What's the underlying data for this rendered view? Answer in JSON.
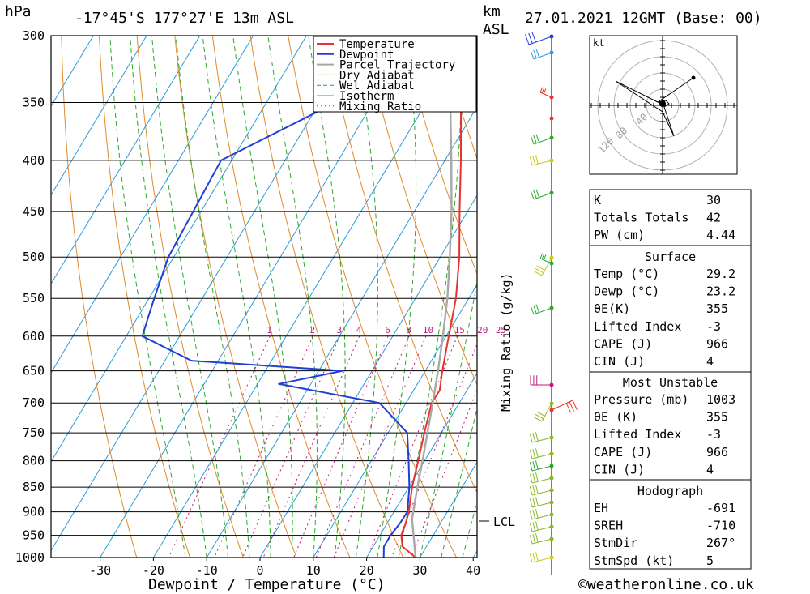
{
  "header": {
    "location": "-17°45'S 177°27'E 13m ASL",
    "datetime": "27.01.2021 12GMT (Base: 00)",
    "hpa_unit": "hPa",
    "km_unit": "km",
    "asl_unit": "ASL",
    "hodograph_unit": "kt"
  },
  "chart_data": {
    "type": "line",
    "xlabel": "Dewpoint / Temperature (°C)",
    "ylabel": "hPa",
    "mixing_ratio_axis_label": "Mixing Ratio (g/kg)",
    "x_ticks": [
      "-30",
      "-20",
      "-10",
      "0",
      "10",
      "20",
      "30",
      "40"
    ],
    "pressure_levels": [
      "300",
      "350",
      "400",
      "450",
      "500",
      "550",
      "600",
      "650",
      "700",
      "750",
      "800",
      "850",
      "900",
      "950",
      "1000"
    ],
    "mixing_ratio_labels": [
      "1",
      "2",
      "3",
      "4",
      "6",
      "8",
      "10",
      "15",
      "20",
      "25"
    ],
    "lcl_label": "LCL",
    "lcl_pressure_hpa": 915,
    "legend": [
      "Temperature",
      "Dewpoint",
      "Parcel Trajectory",
      "Dry Adiabat",
      "Wet Adiabat",
      "Isotherm",
      "Mixing Ratio"
    ],
    "series": [
      {
        "name": "Temperature",
        "color": "#e8322e",
        "points": [
          [
            1000,
            29.2
          ],
          [
            975,
            25.5
          ],
          [
            950,
            24.0
          ],
          [
            925,
            23.5
          ],
          [
            900,
            22.8
          ],
          [
            850,
            20.6
          ],
          [
            800,
            18.8
          ],
          [
            750,
            16.8
          ],
          [
            700,
            14.8
          ],
          [
            680,
            14.9
          ],
          [
            650,
            13.2
          ],
          [
            600,
            10.5
          ],
          [
            550,
            7.6
          ],
          [
            500,
            3.6
          ],
          [
            450,
            -1.5
          ],
          [
            400,
            -7.0
          ],
          [
            350,
            -13.5
          ]
        ]
      },
      {
        "name": "Dewpoint",
        "color": "#1f3fd8",
        "points": [
          [
            1000,
            23.2
          ],
          [
            975,
            22.0
          ],
          [
            950,
            22.0
          ],
          [
            925,
            22.4
          ],
          [
            900,
            22.5
          ],
          [
            850,
            20.1
          ],
          [
            800,
            17.0
          ],
          [
            750,
            13.6
          ],
          [
            700,
            5.0
          ],
          [
            670,
            -16.0
          ],
          [
            650,
            -5.5
          ],
          [
            635,
            -35.0
          ],
          [
            600,
            -47.0
          ],
          [
            575,
            -48.0
          ],
          [
            550,
            -49.0
          ],
          [
            500,
            -51.0
          ],
          [
            400,
            -52.0
          ],
          [
            350,
            -37.0
          ],
          [
            315,
            -23.5
          ],
          [
            305,
            -29.0
          ],
          [
            300,
            -28.0
          ]
        ]
      },
      {
        "name": "Parcel Trajectory",
        "color": "#a8a8a8",
        "points": [
          [
            1000,
            29.2
          ],
          [
            915,
            24.2
          ],
          [
            850,
            21.6
          ],
          [
            800,
            19.6
          ],
          [
            750,
            17.4
          ],
          [
            700,
            15.0
          ],
          [
            650,
            12.4
          ],
          [
            600,
            9.4
          ],
          [
            550,
            6.0
          ],
          [
            500,
            1.8
          ],
          [
            450,
            -3.0
          ],
          [
            400,
            -8.8
          ],
          [
            350,
            -15.5
          ]
        ]
      }
    ],
    "x_range": [
      -40,
      40
    ],
    "y_range_hpa": [
      300,
      1000
    ],
    "y_scale": "log"
  },
  "indices": {
    "rows": [
      {
        "label": "K",
        "value": "30"
      },
      {
        "label": "Totals Totals",
        "value": "42"
      },
      {
        "label": "PW (cm)",
        "value": "4.44"
      }
    ]
  },
  "surface": {
    "title": "Surface",
    "rows": [
      {
        "label": "Temp (°C)",
        "value": "29.2"
      },
      {
        "label": "Dewp (°C)",
        "value": "23.2"
      },
      {
        "label": "θE(K)",
        "value": "355"
      },
      {
        "label": "Lifted Index",
        "value": "-3"
      },
      {
        "label": "CAPE (J)",
        "value": "966"
      },
      {
        "label": "CIN (J)",
        "value": "4"
      }
    ]
  },
  "most_unstable": {
    "title": "Most Unstable",
    "rows": [
      {
        "label": "Pressure (mb)",
        "value": "1003"
      },
      {
        "label": "θE (K)",
        "value": "355"
      },
      {
        "label": "Lifted Index",
        "value": "-3"
      },
      {
        "label": "CAPE (J)",
        "value": "966"
      },
      {
        "label": "CIN (J)",
        "value": "4"
      }
    ]
  },
  "hodograph": {
    "title": "Hodograph",
    "rows": [
      {
        "label": "EH",
        "value": "-691"
      },
      {
        "label": "SREH",
        "value": "-710"
      },
      {
        "label": "StmDir",
        "value": "267°"
      },
      {
        "label": "StmSpd (kt)",
        "value": "5"
      }
    ],
    "ring_labels": [
      "40",
      "80",
      "120"
    ]
  },
  "footer": {
    "copyright": "©weatheronline.co.uk"
  },
  "colors": {
    "temperature": "#e8322e",
    "dewpoint": "#1f3fd8",
    "parcel": "#a8a8a8",
    "dry_adiabat": "#e08a2a",
    "wet_adiabat": "#2aa82a",
    "isotherm": "#2a9ad8",
    "mixing_ratio": "#c0187a"
  }
}
